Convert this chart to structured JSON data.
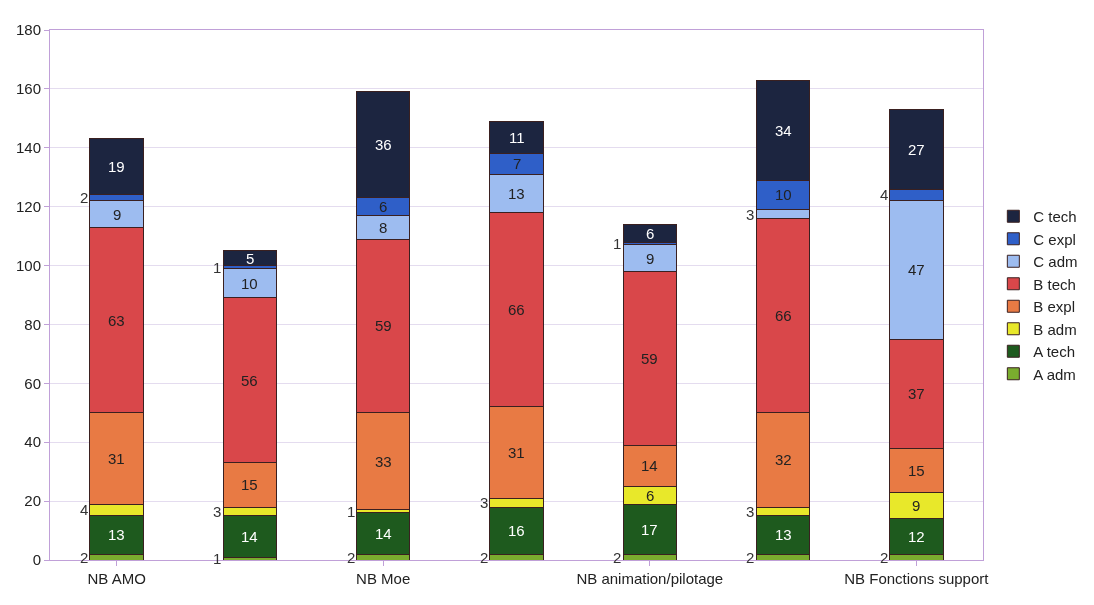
{
  "chart_data": {
    "type": "bar",
    "stacked": true,
    "data_labels": true,
    "categories": [
      "NB AMO",
      null,
      "NB Moe",
      null,
      "NB animation/pilotage",
      null,
      "NB Fonctions support"
    ],
    "series": [
      {
        "name": "A adm",
        "color": "#7aac2e",
        "values": [
          2,
          1,
          2,
          2,
          2,
          2,
          2
        ]
      },
      {
        "name": "A tech",
        "color": "#1e5a1e",
        "values": [
          13,
          14,
          14,
          16,
          17,
          13,
          12
        ]
      },
      {
        "name": "B adm",
        "color": "#e8e82a",
        "values": [
          4,
          3,
          1,
          3,
          6,
          3,
          9
        ]
      },
      {
        "name": "B expl",
        "color": "#e87a44",
        "values": [
          31,
          15,
          33,
          31,
          14,
          32,
          15
        ]
      },
      {
        "name": "B tech",
        "color": "#d9474a",
        "values": [
          63,
          56,
          59,
          66,
          59,
          66,
          37
        ]
      },
      {
        "name": "C adm",
        "color": "#9dbcf0",
        "values": [
          9,
          10,
          8,
          13,
          9,
          3,
          47
        ]
      },
      {
        "name": "C expl",
        "color": "#2f5fc8",
        "values": [
          2,
          1,
          6,
          7,
          1,
          10,
          4
        ]
      },
      {
        "name": "C tech",
        "color": "#1c2540",
        "values": [
          19,
          5,
          36,
          11,
          6,
          34,
          27
        ]
      }
    ],
    "ylim": [
      0,
      180
    ],
    "yticks": [
      0,
      20,
      40,
      60,
      80,
      100,
      120,
      140,
      160,
      180
    ],
    "grid": "y",
    "legend": "right"
  }
}
